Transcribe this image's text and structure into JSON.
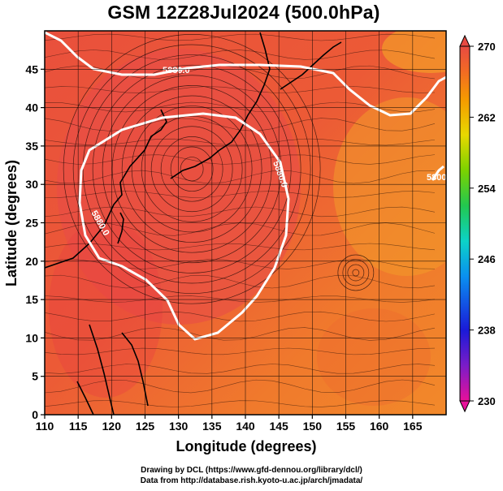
{
  "title": "GSM 12Z28Jul2024 (500.0hPa)",
  "xlabel": "Longitude (degrees)",
  "ylabel": "Latitude  (degrees)",
  "credit_line1": "Drawing by DCL (https://www.gfd-dennou.org/library/dcl/)",
  "credit_line2": "Data from http://database.rish.kyoto-u.ac.jp/arch/jmadata/",
  "chart_data": {
    "type": "heatmap",
    "title": "GSM 12Z28Jul2024 (500.0hPa)",
    "xlabel": "Longitude (degrees)",
    "ylabel": "Latitude  (degrees)",
    "xlim": [
      110,
      170
    ],
    "ylim": [
      0,
      50
    ],
    "x_ticks": [
      "110",
      "115",
      "120",
      "125",
      "130",
      "135",
      "140",
      "145",
      "150",
      "155",
      "160",
      "165"
    ],
    "y_ticks": [
      "0",
      "5",
      "10",
      "15",
      "20",
      "25",
      "30",
      "35",
      "40",
      "45"
    ],
    "grid": true,
    "contours": [
      {
        "label": "5880.0",
        "color": "#ffffff"
      },
      {
        "label": "5880.0",
        "color": "#ffffff"
      },
      {
        "label": "5880.0",
        "color": "#ffffff"
      },
      {
        "label": "5800.0",
        "color": "#ffffff"
      }
    ],
    "colorbar": {
      "min": 230,
      "max": 270,
      "tick_labels": [
        "270",
        "262",
        "254",
        "246",
        "238",
        "230"
      ],
      "colors": [
        "#e8109a",
        "#7a1cc8",
        "#1a1ad8",
        "#0a8ff0",
        "#0cd2c8",
        "#22c850",
        "#7cd200",
        "#e8d800",
        "#f59a00",
        "#f26a24",
        "#e84a42"
      ]
    },
    "field_color_hint": "mostly 264-268 (orange-red)"
  }
}
